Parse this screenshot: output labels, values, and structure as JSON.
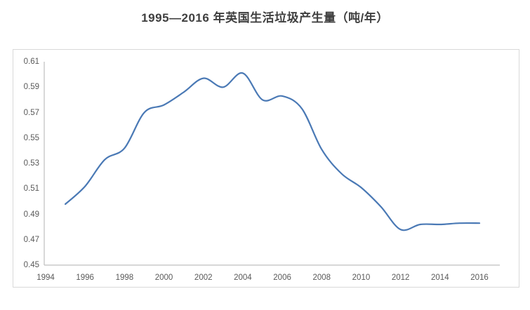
{
  "page": {
    "title": "1995—2016 年英国生活垃圾产生量（吨/年）"
  },
  "chart_data": {
    "type": "line",
    "title": "1995—2016 年英国生活垃圾产生量（吨/年）",
    "x": [
      1995,
      1996,
      1997,
      1998,
      1999,
      2000,
      2001,
      2002,
      2003,
      2004,
      2005,
      2006,
      2007,
      2008,
      2009,
      2010,
      2011,
      2012,
      2013,
      2014,
      2015,
      2016
    ],
    "series": [
      {
        "name": "英国生活垃圾产生量（吨/年）",
        "values": [
          0.498,
          0.512,
          0.533,
          0.542,
          0.57,
          0.576,
          0.586,
          0.597,
          0.59,
          0.601,
          0.58,
          0.583,
          0.573,
          0.541,
          0.522,
          0.511,
          0.496,
          0.478,
          0.482,
          0.482,
          0.483,
          0.483
        ]
      }
    ],
    "x_ticks": [
      1994,
      1996,
      1998,
      2000,
      2002,
      2004,
      2006,
      2008,
      2010,
      2012,
      2014,
      2016
    ],
    "y_ticks": [
      0.45,
      0.47,
      0.49,
      0.51,
      0.53,
      0.55,
      0.57,
      0.59,
      0.61
    ],
    "xlim": [
      1994,
      2017
    ],
    "ylim": [
      0.45,
      0.61
    ],
    "grid": false,
    "legend": "none",
    "smooth": true,
    "line_color": "#4a79b5",
    "axis_color": "#bfbfbf",
    "tick_label_color": "#595959",
    "title_color": "#3f3f3f",
    "panel_border_color": "#d9d9d9"
  }
}
